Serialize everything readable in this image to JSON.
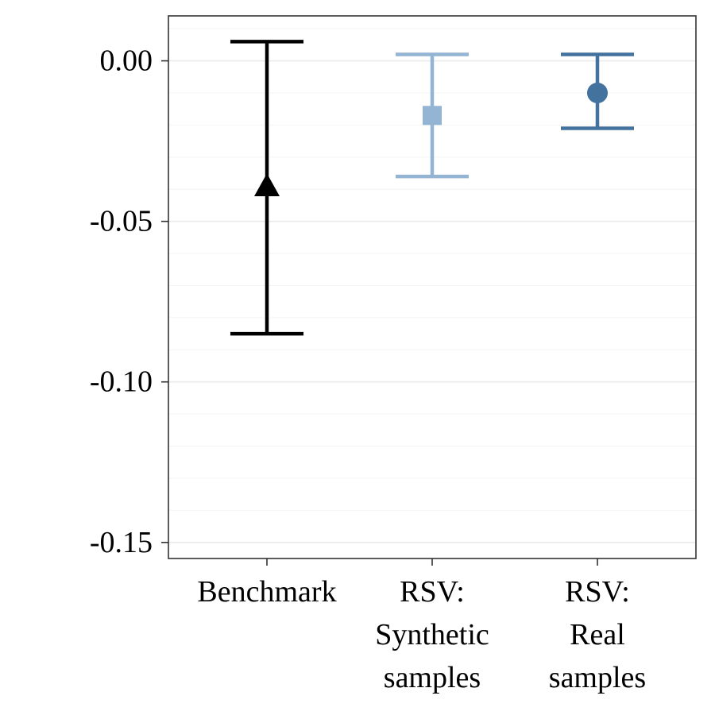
{
  "chart_data": {
    "type": "errorbar",
    "categories": [
      [
        "Benchmark"
      ],
      [
        "RSV:",
        "Synthetic",
        "samples"
      ],
      [
        "RSV:",
        "Real",
        "samples"
      ]
    ],
    "points": [
      {
        "category": "Benchmark",
        "value": -0.039,
        "lower": -0.085,
        "upper": 0.006,
        "color": "#000000",
        "marker": "triangle"
      },
      {
        "category": "RSV: Synthetic samples",
        "value": -0.017,
        "lower": -0.036,
        "upper": 0.002,
        "color": "#93b4d2",
        "marker": "square"
      },
      {
        "category": "RSV: Real samples",
        "value": -0.01,
        "lower": -0.021,
        "upper": 0.002,
        "color": "#44729e",
        "marker": "circle"
      }
    ],
    "yticks": [
      "0.00",
      "-0.05",
      "-0.10",
      "-0.15"
    ],
    "ytick_values": [
      0.0,
      -0.05,
      -0.1,
      -0.15
    ],
    "ylim": [
      -0.155,
      0.014
    ],
    "title": "",
    "xlabel": "",
    "ylabel": "",
    "grid": true,
    "legend": "none"
  }
}
